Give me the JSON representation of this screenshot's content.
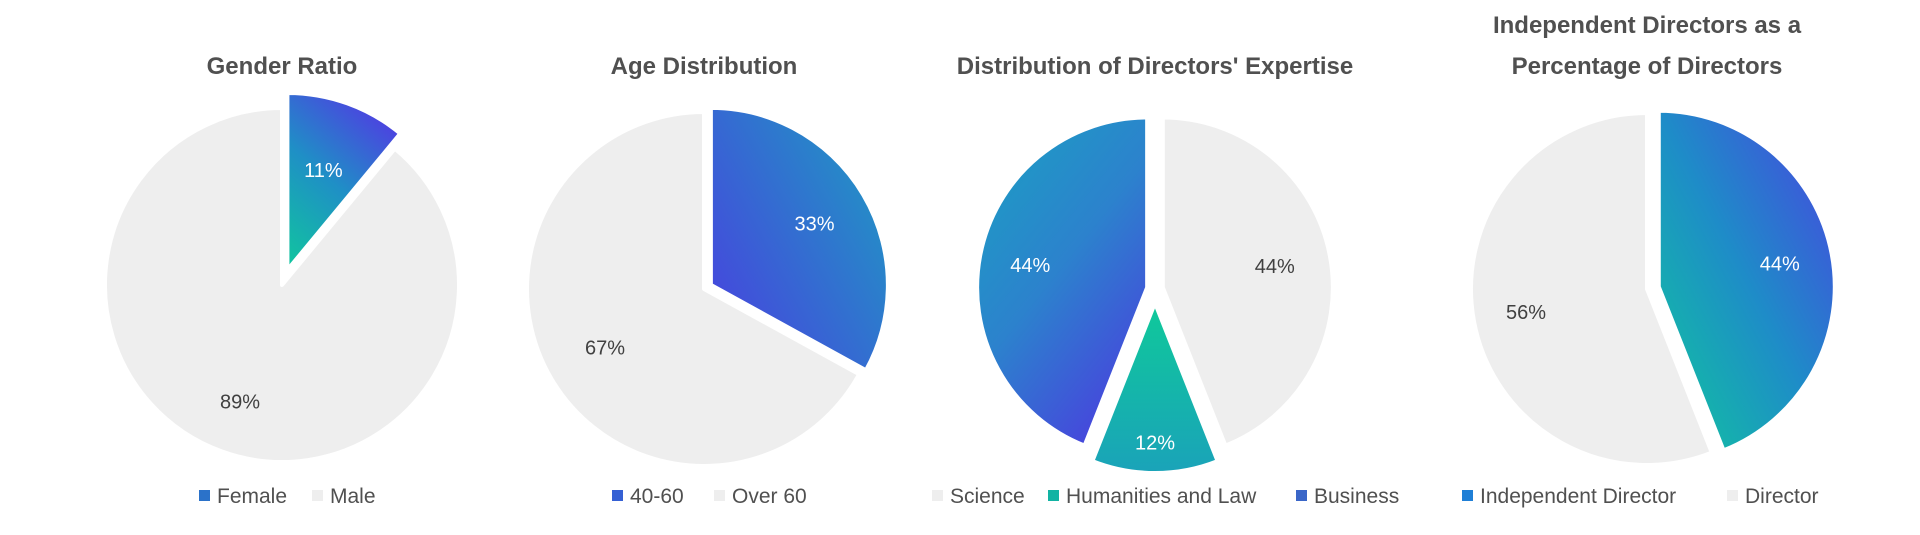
{
  "chart_data": [
    {
      "type": "pie",
      "title": [
        "Gender Ratio"
      ],
      "slices": [
        {
          "label": "Female",
          "value": 11,
          "display": "11%",
          "fill": "gradA",
          "legend_color": "#2b72c9"
        },
        {
          "label": "Male",
          "value": 89,
          "display": "89%",
          "fill": "#eeeeee",
          "legend_color": "#eeeeee"
        }
      ]
    },
    {
      "type": "pie",
      "title": [
        "Age Distribution"
      ],
      "slices": [
        {
          "label": "40-60",
          "value": 33,
          "display": "33%",
          "fill": "gradB",
          "legend_color": "#3560d4"
        },
        {
          "label": "Over 60",
          "value": 67,
          "display": "67%",
          "fill": "#eeeeee",
          "legend_color": "#eeeeee"
        }
      ]
    },
    {
      "type": "pie",
      "title": [
        "Distribution of Directors' Expertise"
      ],
      "slices": [
        {
          "label": "Science",
          "value": 44,
          "display": "44%",
          "fill": "#eeeeee",
          "legend_color": "#eeeeee"
        },
        {
          "label": "Humanities and Law",
          "value": 12,
          "display": "12%",
          "fill": "gradC",
          "legend_color": "#12b3a3"
        },
        {
          "label": "Business",
          "value": 44,
          "display": "44%",
          "fill": "gradD",
          "legend_color": "#3a66c8"
        }
      ]
    },
    {
      "type": "pie",
      "title": [
        "Independent Directors as a",
        "Percentage of Directors"
      ],
      "slices": [
        {
          "label": "Independent Director",
          "value": 44,
          "display": "44%",
          "fill": "gradE",
          "legend_color": "#1f7fd6"
        },
        {
          "label": "Director",
          "value": 56,
          "display": "56%",
          "fill": "#eeeeee",
          "legend_color": "#eeeeee"
        }
      ]
    }
  ],
  "colors": {
    "title": "#505050",
    "label_dark": "#404040",
    "label_light": "#ffffff",
    "grey_slice": "#eeeeee"
  }
}
